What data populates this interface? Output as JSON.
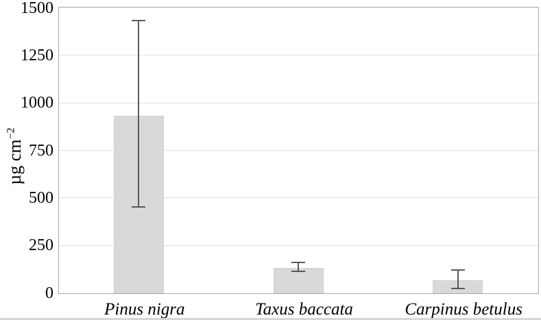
{
  "chart_data": {
    "type": "bar",
    "title": "",
    "ylabel": "µg cm⁻²",
    "ylabel_base": "µg cm",
    "ylabel_exponent": "−2",
    "xlabel": "",
    "ylim": [
      0,
      1500
    ],
    "yticks": [
      0,
      250,
      500,
      750,
      1000,
      1250,
      1500
    ],
    "grid": "horizontal",
    "legend": "none",
    "categories": [
      "Pinus nigra",
      "Taxus baccata",
      "Carpinus betulus"
    ],
    "values": [
      935,
      135,
      70
    ],
    "error_bars": [
      {
        "low": 450,
        "high": 1430
      },
      {
        "low": 110,
        "high": 160
      },
      {
        "low": 20,
        "high": 120
      }
    ],
    "colors": {
      "bar_fill": "#d9d9d9",
      "bar_border": "#d0d0d0",
      "error_bar": "#595959",
      "gridline": "#e0e0e0",
      "plot_border": "#a6a6a6",
      "text": "#000000"
    }
  }
}
